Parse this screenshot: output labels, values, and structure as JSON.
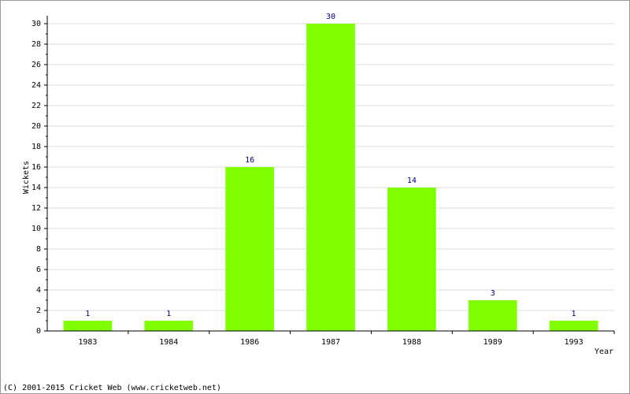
{
  "chart_data": {
    "type": "bar",
    "ylabel": "Wickets",
    "xlabel": "Year",
    "footer": "(C) 2001-2015 Cricket Web (www.cricketweb.net)",
    "categories": [
      "1983",
      "1984",
      "1986",
      "1987",
      "1988",
      "1989",
      "1993"
    ],
    "values": [
      1,
      1,
      16,
      30,
      14,
      3,
      1
    ],
    "color": "#7fff00",
    "value_label_color": "#000080",
    "ylim": [
      0,
      30
    ],
    "yticks": [
      0,
      2,
      4,
      6,
      8,
      10,
      12,
      14,
      16,
      18,
      20,
      22,
      24,
      26,
      28,
      30
    ],
    "grid": true
  }
}
